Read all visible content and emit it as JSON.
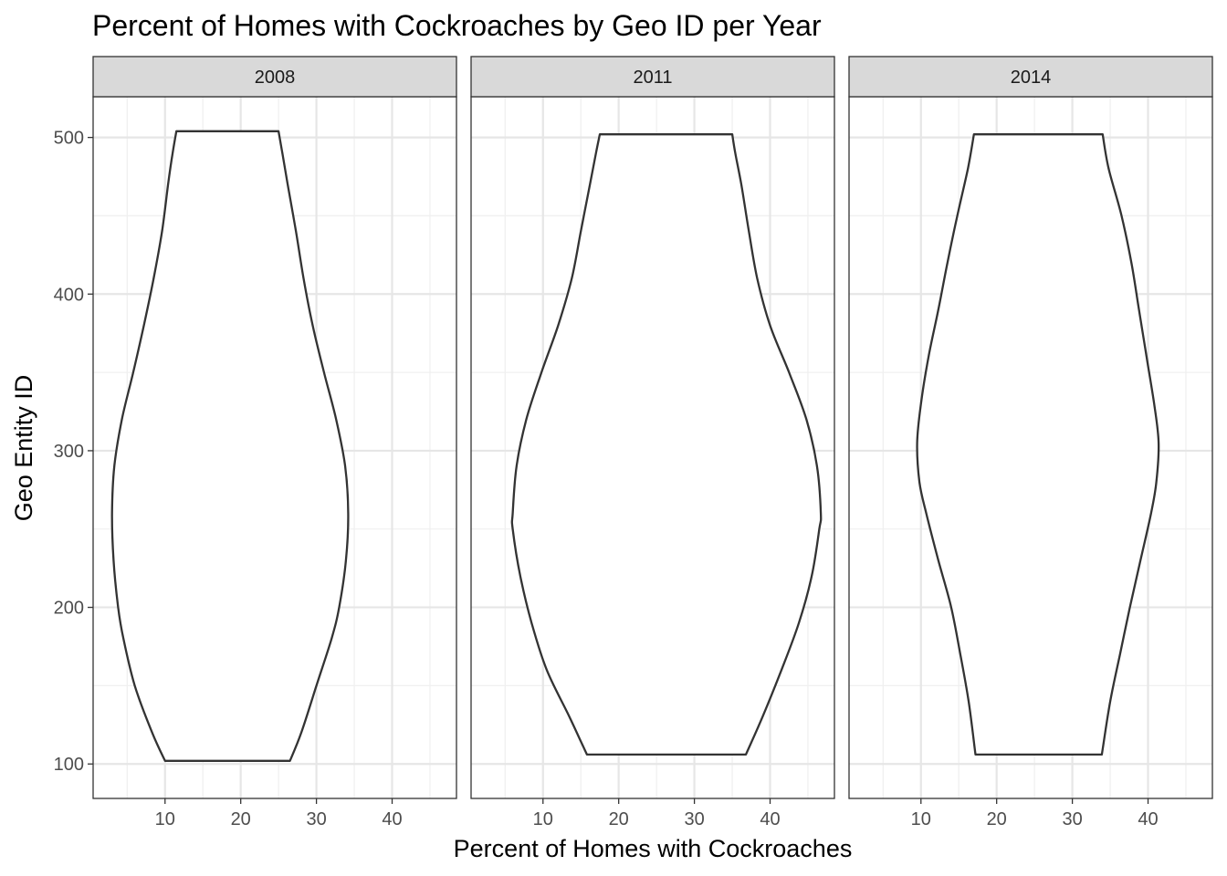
{
  "chart_data": {
    "type": "violin",
    "title": "Percent of Homes with Cockroaches by Geo ID per Year",
    "xlabel": "Percent of Homes with Cockroaches",
    "ylabel": "Geo Entity ID",
    "xlim": [
      0.5,
      48.5
    ],
    "ylim": [
      78,
      526
    ],
    "x_ticks": [
      10,
      20,
      30,
      40
    ],
    "y_ticks": [
      100,
      200,
      300,
      400,
      500
    ],
    "grid": true,
    "facets": [
      {
        "label": "2008",
        "outline": [
          {
            "y": 102,
            "xmin": 10.0,
            "xmax": 26.5
          },
          {
            "y": 120,
            "xmin": 8.3,
            "xmax": 28.0
          },
          {
            "y": 150,
            "xmin": 6.0,
            "xmax": 30.0
          },
          {
            "y": 180,
            "xmin": 4.5,
            "xmax": 32.0
          },
          {
            "y": 200,
            "xmin": 3.8,
            "xmax": 33.0
          },
          {
            "y": 230,
            "xmin": 3.2,
            "xmax": 33.9
          },
          {
            "y": 260,
            "xmin": 3.0,
            "xmax": 34.2
          },
          {
            "y": 290,
            "xmin": 3.3,
            "xmax": 33.8
          },
          {
            "y": 320,
            "xmin": 4.3,
            "xmax": 32.6
          },
          {
            "y": 350,
            "xmin": 5.8,
            "xmax": 31.0
          },
          {
            "y": 380,
            "xmin": 7.2,
            "xmax": 29.5
          },
          {
            "y": 410,
            "xmin": 8.5,
            "xmax": 28.3
          },
          {
            "y": 440,
            "xmin": 9.6,
            "xmax": 27.3
          },
          {
            "y": 470,
            "xmin": 10.4,
            "xmax": 26.2
          },
          {
            "y": 490,
            "xmin": 11.0,
            "xmax": 25.5
          },
          {
            "y": 504,
            "xmin": 11.5,
            "xmax": 25.0
          }
        ]
      },
      {
        "label": "2011",
        "outline": [
          {
            "y": 106,
            "xmin": 15.8,
            "xmax": 36.8
          },
          {
            "y": 130,
            "xmin": 13.5,
            "xmax": 39.0
          },
          {
            "y": 160,
            "xmin": 10.5,
            "xmax": 41.5
          },
          {
            "y": 190,
            "xmin": 8.5,
            "xmax": 43.8
          },
          {
            "y": 220,
            "xmin": 7.0,
            "xmax": 45.5
          },
          {
            "y": 250,
            "xmin": 6.0,
            "xmax": 46.5
          },
          {
            "y": 260,
            "xmin": 6.0,
            "xmax": 46.7
          },
          {
            "y": 290,
            "xmin": 6.5,
            "xmax": 46.2
          },
          {
            "y": 320,
            "xmin": 7.8,
            "xmax": 44.8
          },
          {
            "y": 350,
            "xmin": 9.8,
            "xmax": 42.5
          },
          {
            "y": 380,
            "xmin": 12.0,
            "xmax": 40.0
          },
          {
            "y": 410,
            "xmin": 13.8,
            "xmax": 38.3
          },
          {
            "y": 440,
            "xmin": 15.0,
            "xmax": 37.2
          },
          {
            "y": 470,
            "xmin": 16.2,
            "xmax": 36.2
          },
          {
            "y": 490,
            "xmin": 17.0,
            "xmax": 35.4
          },
          {
            "y": 502,
            "xmin": 17.5,
            "xmax": 35.0
          }
        ]
      },
      {
        "label": "2014",
        "outline": [
          {
            "y": 106,
            "xmin": 17.2,
            "xmax": 33.9
          },
          {
            "y": 140,
            "xmin": 16.3,
            "xmax": 35.0
          },
          {
            "y": 170,
            "xmin": 15.2,
            "xmax": 36.3
          },
          {
            "y": 200,
            "xmin": 14.0,
            "xmax": 37.6
          },
          {
            "y": 230,
            "xmin": 12.3,
            "xmax": 39.0
          },
          {
            "y": 260,
            "xmin": 10.7,
            "xmax": 40.4
          },
          {
            "y": 280,
            "xmin": 9.8,
            "xmax": 41.1
          },
          {
            "y": 305,
            "xmin": 9.5,
            "xmax": 41.4
          },
          {
            "y": 330,
            "xmin": 10.0,
            "xmax": 40.8
          },
          {
            "y": 360,
            "xmin": 11.0,
            "xmax": 39.8
          },
          {
            "y": 390,
            "xmin": 12.3,
            "xmax": 38.8
          },
          {
            "y": 420,
            "xmin": 13.5,
            "xmax": 37.8
          },
          {
            "y": 450,
            "xmin": 14.8,
            "xmax": 36.5
          },
          {
            "y": 480,
            "xmin": 16.2,
            "xmax": 34.8
          },
          {
            "y": 502,
            "xmin": 17.0,
            "xmax": 34.0
          }
        ]
      }
    ]
  }
}
